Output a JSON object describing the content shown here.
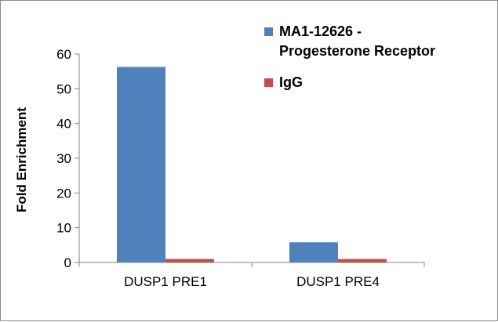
{
  "chart_data": {
    "type": "bar",
    "categories": [
      "DUSP1 PRE1",
      "DUSP1 PRE4"
    ],
    "series": [
      {
        "name": "MA1-12626 - Progesterone Receptor",
        "values": [
          56.3,
          5.8
        ],
        "color": "#4f81bd"
      },
      {
        "name": "IgG",
        "values": [
          1.0,
          1.0
        ],
        "color": "#c0504d"
      }
    ],
    "legend_lines": [
      [
        "MA1-12626 -",
        "Progesterone Receptor"
      ],
      [
        "IgG"
      ]
    ],
    "ylabel": "Fold Enrichment",
    "xlabel": "",
    "ylim": [
      0,
      60
    ],
    "yticks": [
      "0",
      "10",
      "20",
      "30",
      "40",
      "50",
      "60"
    ],
    "grid": false,
    "legend_position": "top-right"
  }
}
